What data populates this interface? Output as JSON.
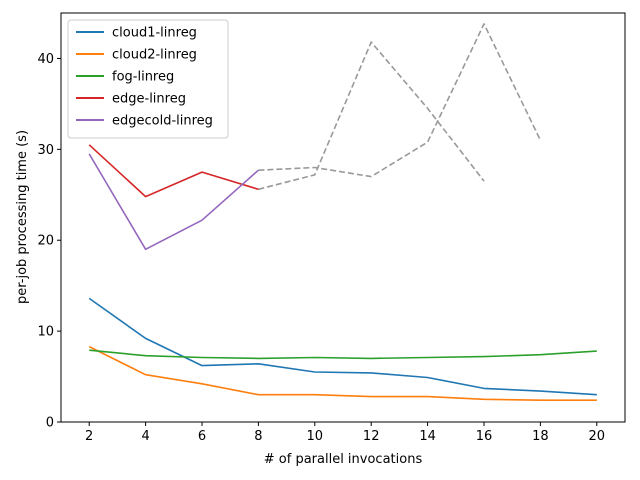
{
  "chart_data": {
    "type": "line",
    "title": "",
    "xlabel": "# of parallel invocations",
    "ylabel": "per-job processing time (s)",
    "xlim": [
      1,
      21
    ],
    "ylim": [
      0,
      45
    ],
    "xticks": [
      2,
      4,
      6,
      8,
      10,
      12,
      14,
      16,
      18,
      20
    ],
    "yticks": [
      0,
      10,
      20,
      30,
      40
    ],
    "grid": false,
    "legend_position": "top-left",
    "series": [
      {
        "name": "cloud1-linreg",
        "color": "#1f77b4",
        "style": "solid",
        "x": [
          2,
          4,
          6,
          8,
          10,
          12,
          14,
          16,
          18,
          20
        ],
        "values": [
          13.6,
          9.2,
          6.2,
          6.4,
          5.5,
          5.4,
          4.9,
          3.7,
          3.4,
          3.0
        ]
      },
      {
        "name": "cloud2-linreg",
        "color": "#ff7f0e",
        "style": "solid",
        "x": [
          2,
          4,
          6,
          8,
          10,
          12,
          14,
          16,
          18,
          20
        ],
        "values": [
          8.3,
          5.2,
          4.2,
          3.0,
          3.0,
          2.8,
          2.8,
          2.5,
          2.4,
          2.4
        ]
      },
      {
        "name": "fog-linreg",
        "color": "#2ca02c",
        "style": "solid",
        "x": [
          2,
          4,
          6,
          8,
          10,
          12,
          14,
          16,
          18,
          20
        ],
        "values": [
          7.9,
          7.3,
          7.1,
          7.0,
          7.1,
          7.0,
          7.1,
          7.2,
          7.4,
          7.8
        ]
      },
      {
        "name": "edge-linreg",
        "color": "#d62728",
        "style": "solid",
        "x": [
          2,
          4,
          6,
          8
        ],
        "values": [
          30.5,
          24.8,
          27.5,
          25.6
        ]
      },
      {
        "name": "edgecold-linreg",
        "color": "#9467bd",
        "style": "solid",
        "x": [
          2,
          4,
          6,
          8
        ],
        "values": [
          29.5,
          19.0,
          22.2,
          27.7
        ]
      },
      {
        "color": "#999999",
        "style": "dashed",
        "x": [
          8,
          10,
          12,
          14,
          16
        ],
        "values": [
          25.6,
          27.2,
          41.8,
          34.5,
          26.5
        ]
      },
      {
        "color": "#999999",
        "style": "dashed",
        "x": [
          8,
          10,
          12,
          14,
          16,
          18
        ],
        "values": [
          27.7,
          28.0,
          27.0,
          30.8,
          43.8,
          31.0
        ]
      }
    ]
  }
}
